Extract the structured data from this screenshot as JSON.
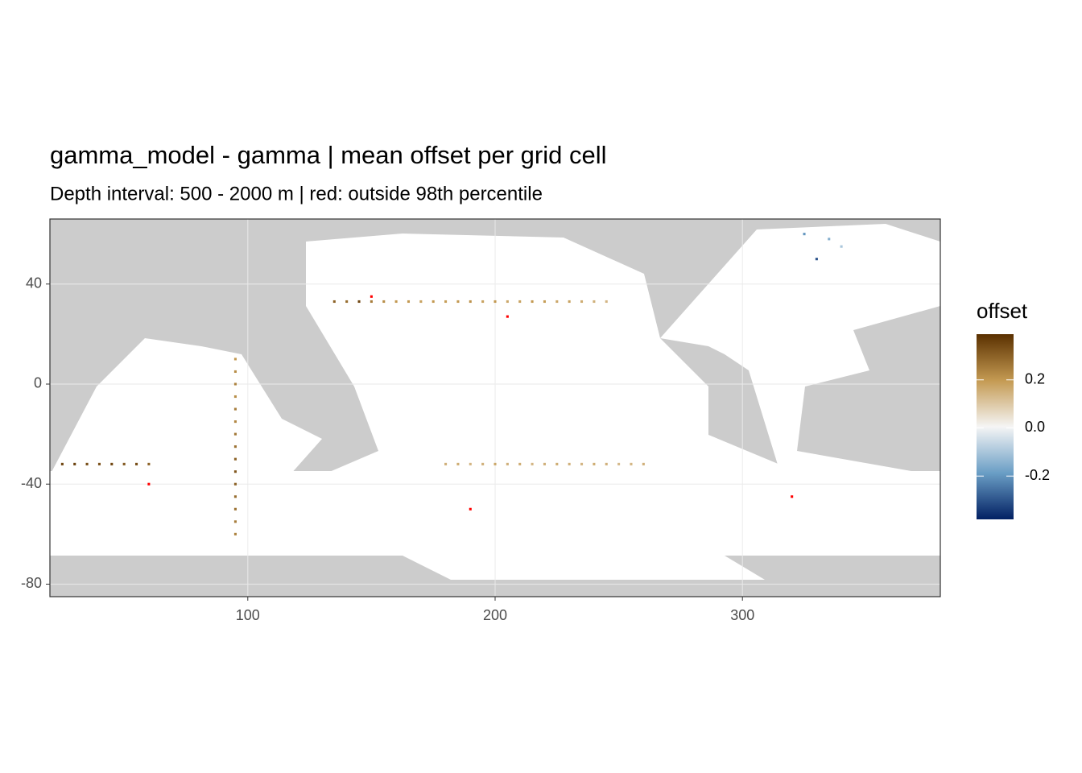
{
  "chart_data": {
    "type": "heatmap",
    "title": "gamma_model - gamma  | mean offset per grid cell",
    "subtitle": "Depth interval: 500 - 2000 m | red: outside 98th percentile",
    "xlim": [
      20,
      380
    ],
    "ylim": [
      -85,
      66
    ],
    "xticks": [
      100,
      200,
      300
    ],
    "yticks": [
      40,
      0,
      -40,
      -80
    ],
    "grid": true,
    "legend_title": "offset",
    "colorlim": [
      -0.38,
      0.39
    ],
    "colorticks": [
      0.2,
      {
        "value": 0,
        "label": "0.0"
      },
      -0.2
    ],
    "colorscale": [
      "#022063",
      "#6a9ec5",
      "#f5f5f5",
      "#c49a52",
      "#5a3000"
    ],
    "outlier_color": "#ff0000",
    "cells": {
      "x": [
        135,
        140,
        145,
        150,
        155,
        160,
        165,
        170,
        175,
        180,
        185,
        190,
        195,
        200,
        205,
        210,
        215,
        220,
        225,
        230,
        235,
        240,
        245,
        95,
        95,
        95,
        95,
        95,
        95,
        95,
        95,
        95,
        95,
        95,
        95,
        95,
        95,
        95,
        25,
        30,
        35,
        40,
        45,
        50,
        55,
        60,
        180,
        185,
        190,
        195,
        200,
        205,
        210,
        215,
        220,
        225,
        230,
        235,
        240,
        245,
        250,
        255,
        260,
        330,
        335,
        340,
        325,
        150,
        205,
        190,
        60,
        320
      ],
      "y": [
        33,
        33,
        33,
        33,
        33,
        33,
        33,
        33,
        33,
        33,
        33,
        33,
        33,
        33,
        33,
        33,
        33,
        33,
        33,
        33,
        33,
        33,
        33,
        10,
        5,
        0,
        -5,
        -10,
        -15,
        -20,
        -25,
        -30,
        -35,
        -40,
        -45,
        -50,
        -55,
        -60,
        -32,
        -32,
        -32,
        -32,
        -32,
        -32,
        -32,
        -32,
        -32,
        -32,
        -32,
        -32,
        -32,
        -32,
        -32,
        -32,
        -32,
        -32,
        -32,
        -32,
        -32,
        -32,
        -32,
        -32,
        -32,
        50,
        58,
        55,
        60,
        35,
        27,
        -50,
        -40,
        -45
      ],
      "values": [
        0.3,
        0.28,
        0.35,
        0.25,
        0.22,
        0.2,
        0.2,
        0.18,
        0.2,
        0.19,
        0.2,
        0.21,
        0.18,
        0.2,
        0.17,
        0.18,
        0.2,
        0.19,
        0.17,
        0.18,
        0.16,
        0.15,
        0.14,
        0.2,
        0.22,
        0.24,
        0.22,
        0.25,
        0.23,
        0.26,
        0.27,
        0.3,
        0.32,
        0.3,
        0.28,
        0.27,
        0.25,
        0.24,
        0.35,
        0.36,
        0.34,
        0.33,
        0.35,
        0.32,
        0.34,
        0.3,
        0.15,
        0.16,
        0.14,
        0.15,
        0.17,
        0.15,
        0.16,
        0.14,
        0.15,
        0.16,
        0.15,
        0.14,
        0.16,
        0.15,
        0.13,
        0.14,
        0.15,
        -0.3,
        -0.15,
        -0.1,
        -0.2,
        0.5,
        0.5,
        0.5,
        0.5,
        0.5
      ]
    }
  }
}
